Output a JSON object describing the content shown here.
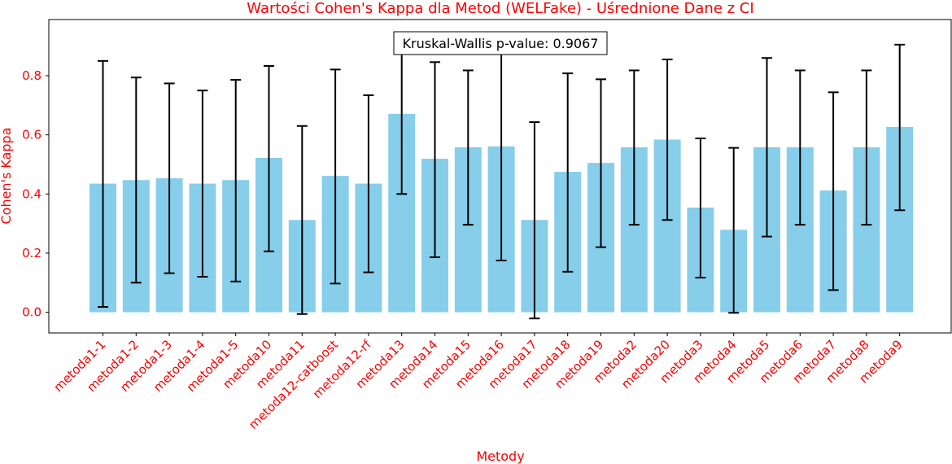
{
  "chart_data": {
    "type": "bar",
    "title": "Wartości Cohen's Kappa dla Metod (WELFake) - Uśrednione Dane z CI",
    "xlabel": "Metody",
    "ylabel": "Cohen's Kappa",
    "categories": [
      "metoda1-1",
      "metoda1-2",
      "metoda1-3",
      "metoda1-4",
      "metoda1-5",
      "metoda10",
      "metoda11",
      "metoda12-catboost",
      "metoda12-rf",
      "metoda13",
      "metoda14",
      "metoda15",
      "metoda16",
      "metoda17",
      "metoda18",
      "metoda19",
      "metoda2",
      "metoda20",
      "metoda3",
      "metoda4",
      "metoda5",
      "metoda6",
      "metoda7",
      "metoda8",
      "metoda9"
    ],
    "values": [
      0.435,
      0.447,
      0.453,
      0.435,
      0.447,
      0.522,
      0.312,
      0.461,
      0.435,
      0.671,
      0.519,
      0.558,
      0.561,
      0.312,
      0.475,
      0.505,
      0.558,
      0.584,
      0.354,
      0.279,
      0.558,
      0.558,
      0.412,
      0.558,
      0.627
    ],
    "ci_lower": [
      0.018,
      0.1,
      0.132,
      0.12,
      0.104,
      0.206,
      -0.006,
      0.097,
      0.135,
      0.4,
      0.186,
      0.296,
      0.175,
      -0.021,
      0.137,
      0.22,
      0.296,
      0.312,
      0.117,
      -0.002,
      0.256,
      0.296,
      0.075,
      0.296,
      0.345
    ],
    "ci_upper": [
      0.85,
      0.794,
      0.774,
      0.75,
      0.786,
      0.833,
      0.63,
      0.821,
      0.734,
      0.94,
      0.846,
      0.818,
      0.94,
      0.643,
      0.808,
      0.788,
      0.818,
      0.855,
      0.588,
      0.556,
      0.86,
      0.818,
      0.744,
      0.818,
      0.905
    ],
    "ylim": [
      -0.07,
      0.99
    ],
    "yticks": [
      0.0,
      0.2,
      0.4,
      0.6,
      0.8
    ],
    "ytick_labels": [
      "0.0",
      "0.2",
      "0.4",
      "0.6",
      "0.8"
    ],
    "grid": false,
    "bar_color": "#87ceeb",
    "errorbar_color": "#000000",
    "label_color": "#ff0000",
    "annotation": "Kruskal-Wallis p-value: 0.9067"
  }
}
